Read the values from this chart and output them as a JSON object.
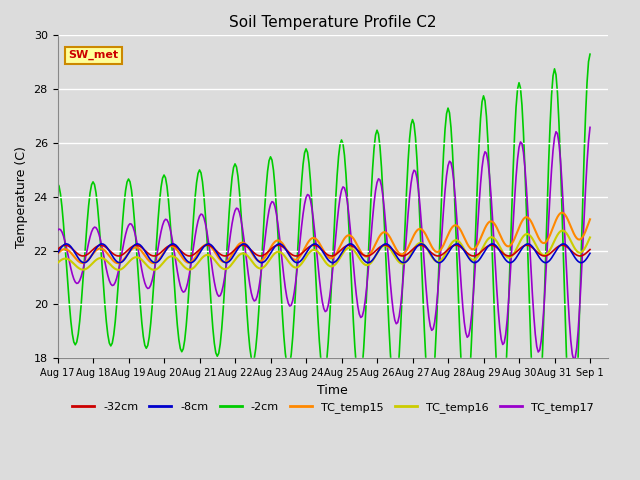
{
  "title": "Soil Temperature Profile C2",
  "xlabel": "Time",
  "ylabel": "Temperature (C)",
  "ylim": [
    18,
    30
  ],
  "xtick_labels": [
    "Aug 17",
    "Aug 18",
    "Aug 19",
    "Aug 20",
    "Aug 21",
    "Aug 22",
    "Aug 23",
    "Aug 24",
    "Aug 25",
    "Aug 26",
    "Aug 27",
    "Aug 28",
    "Aug 29",
    "Aug 30",
    "Aug 31",
    "Sep 1"
  ],
  "series": {
    "-32cm": {
      "color": "#cc0000",
      "lw": 1.2
    },
    "-8cm": {
      "color": "#0000cc",
      "lw": 1.2
    },
    "-2cm": {
      "color": "#00cc00",
      "lw": 1.2
    },
    "TC_temp15": {
      "color": "#ff8800",
      "lw": 1.5
    },
    "TC_temp16": {
      "color": "#cccc00",
      "lw": 1.5
    },
    "TC_temp17": {
      "color": "#9900cc",
      "lw": 1.2
    }
  },
  "sw_met_label": "SW_met",
  "sw_met_color": "#cc0000",
  "sw_met_bg": "#ffff99",
  "sw_met_border": "#cc8800",
  "fig_bg": "#dcdcdc",
  "plot_bg": "#dcdcdc"
}
